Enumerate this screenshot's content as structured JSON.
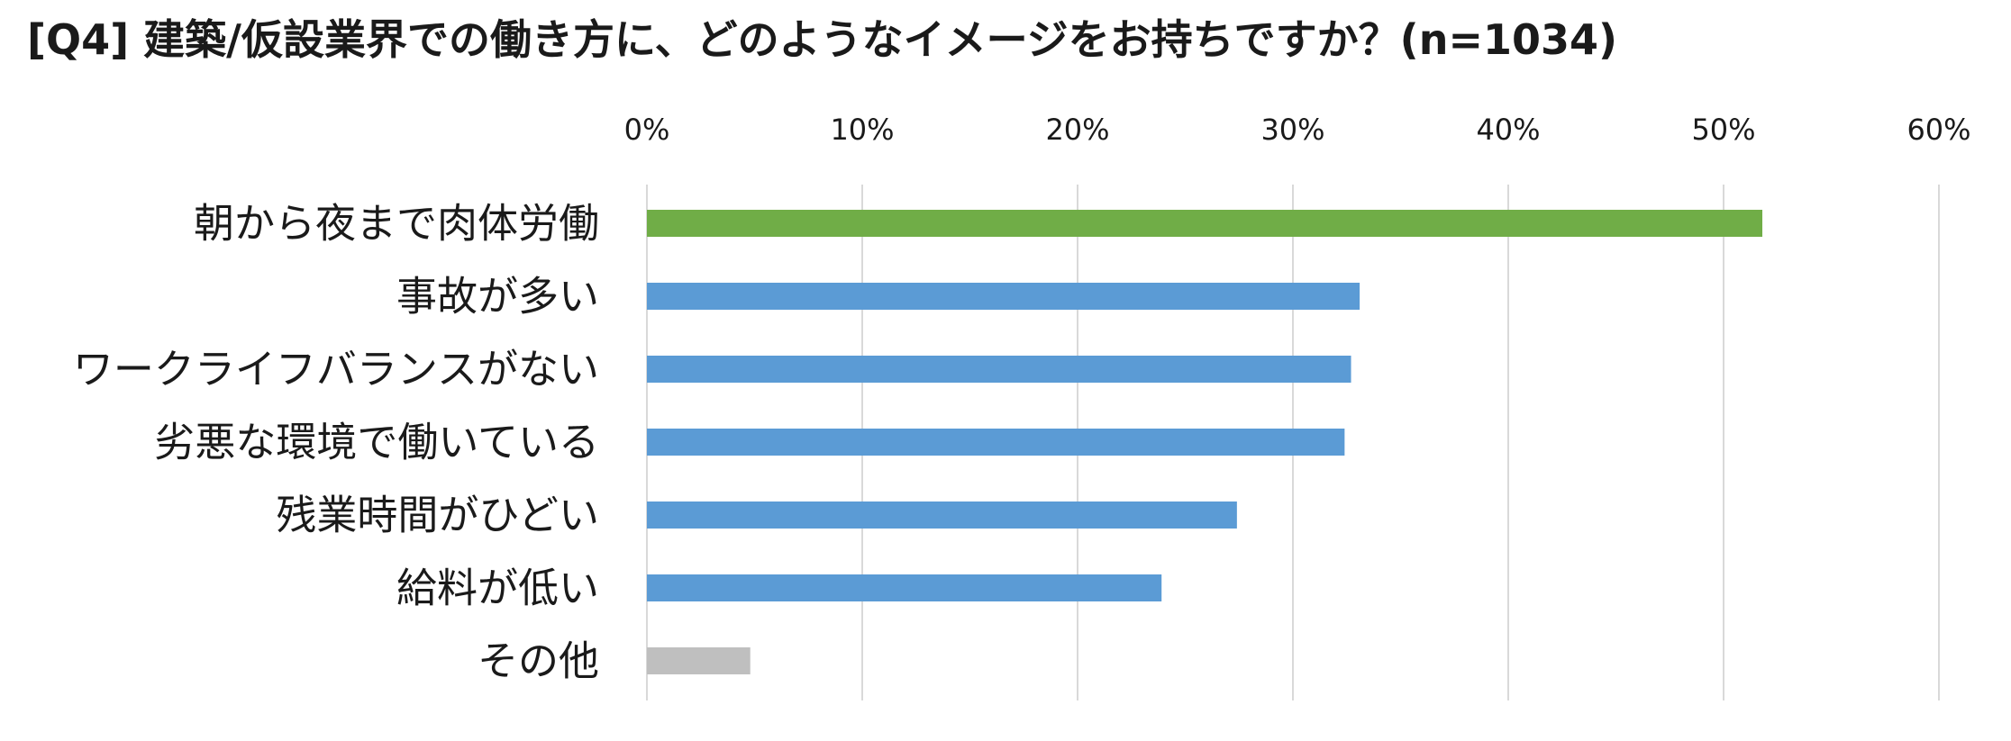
{
  "chart_data": {
    "type": "bar",
    "orientation": "horizontal",
    "title": "[Q4] 建築/仮設業界での働き方に、どのようなイメージをお持ちですか？(n=1034)",
    "categories": [
      "朝から夜まで肉体労働",
      "事故が多い",
      "ワークライフバランスがない",
      "劣悪な環境で働いている",
      "残業時間がひどい",
      "給料が低い",
      "その他"
    ],
    "values": [
      51.8,
      33.1,
      32.7,
      32.4,
      27.4,
      23.9,
      4.8
    ],
    "unit": "%",
    "bar_colors": [
      "#70ad47",
      "#5b9bd5",
      "#5b9bd5",
      "#5b9bd5",
      "#5b9bd5",
      "#5b9bd5",
      "#bfbfbf"
    ],
    "xlim": [
      0,
      60
    ],
    "x_ticks": [
      0,
      10,
      20,
      30,
      40,
      50,
      60
    ],
    "x_tick_labels": [
      "0%",
      "10%",
      "20%",
      "30%",
      "40%",
      "50%",
      "60%"
    ],
    "xlabel": "",
    "ylabel": "",
    "x_axis_position": "top",
    "grid": "vertical",
    "legend": "none"
  }
}
